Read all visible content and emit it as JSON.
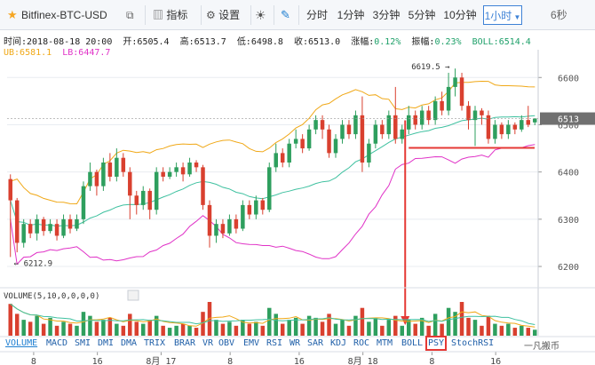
{
  "toolbar": {
    "symbol": "Bitfinex-BTC-USD",
    "indicators_label": "指标",
    "settings_label": "设置",
    "intervals": [
      "分时",
      "1分钟",
      "3分钟",
      "5分钟",
      "10分钟",
      "1小时"
    ],
    "active_interval": "1小时",
    "countdown": "6秒"
  },
  "info": {
    "time": "时间:2018-08-18 20:00",
    "open": "开:6505.4",
    "high": "高:6513.7",
    "low": "低:6498.8",
    "close": "收:6513.0",
    "change_label": "涨幅:",
    "change_value": "0.12%",
    "amplitude_label": "振幅:",
    "amplitude_value": "0.23%",
    "boll": "BOLL:6514.4",
    "ub": "UB:6581.1",
    "lb": "LB:6447.7"
  },
  "colors": {
    "up": "#2e9f5e",
    "down": "#d9402f",
    "boll_mid": "#3fc1a0",
    "boll_ub": "#f0a817",
    "boll_lb": "#e032c7",
    "support_line": "#e53935",
    "arrow": "#e53935",
    "price_tag_bg": "#707070"
  },
  "chart_data": {
    "type": "candlestick",
    "y_ticks": [
      6600,
      6500,
      6400,
      6300,
      6200
    ],
    "ylim": [
      6170,
      6640
    ],
    "current_price_label": "6513",
    "max_label": "6619.5",
    "min_label": "6212.9",
    "x_ticks": [
      "8",
      "16",
      "8月 17",
      "8",
      "16",
      "8月 18",
      "8",
      "16"
    ],
    "volume_panel_label": "VOLUME(5,10,0,0,0,0)",
    "support_level": 6451,
    "candles": [
      [
        6385,
        6340,
        6395,
        6220,
        80
      ],
      [
        6340,
        6250,
        6345,
        6230,
        55
      ],
      [
        6250,
        6290,
        6300,
        6240,
        40
      ],
      [
        6290,
        6270,
        6300,
        6260,
        35
      ],
      [
        6270,
        6300,
        6310,
        6255,
        50
      ],
      [
        6300,
        6275,
        6305,
        6265,
        30
      ],
      [
        6275,
        6290,
        6300,
        6270,
        45
      ],
      [
        6290,
        6265,
        6300,
        6255,
        25
      ],
      [
        6265,
        6300,
        6310,
        6260,
        35
      ],
      [
        6300,
        6280,
        6310,
        6270,
        30
      ],
      [
        6280,
        6300,
        6310,
        6275,
        25
      ],
      [
        6300,
        6370,
        6380,
        6290,
        60
      ],
      [
        6370,
        6400,
        6420,
        6360,
        50
      ],
      [
        6400,
        6370,
        6405,
        6350,
        35
      ],
      [
        6370,
        6420,
        6430,
        6360,
        40
      ],
      [
        6420,
        6390,
        6440,
        6380,
        45
      ],
      [
        6390,
        6430,
        6450,
        6380,
        30
      ],
      [
        6430,
        6400,
        6440,
        6390,
        25
      ],
      [
        6400,
        6350,
        6410,
        6300,
        55
      ],
      [
        6350,
        6330,
        6360,
        6310,
        35
      ],
      [
        6330,
        6360,
        6370,
        6320,
        30
      ],
      [
        6360,
        6320,
        6365,
        6300,
        40
      ],
      [
        6320,
        6400,
        6410,
        6310,
        50
      ],
      [
        6400,
        6390,
        6410,
        6380,
        25
      ],
      [
        6390,
        6400,
        6410,
        6385,
        20
      ],
      [
        6400,
        6410,
        6420,
        6390,
        25
      ],
      [
        6410,
        6395,
        6420,
        6380,
        30
      ],
      [
        6395,
        6420,
        6430,
        6390,
        25
      ],
      [
        6420,
        6410,
        6425,
        6400,
        20
      ],
      [
        6410,
        6330,
        6415,
        6320,
        60
      ],
      [
        6330,
        6265,
        6340,
        6240,
        85
      ],
      [
        6265,
        6290,
        6300,
        6250,
        40
      ],
      [
        6290,
        6270,
        6300,
        6260,
        30
      ],
      [
        6270,
        6300,
        6310,
        6265,
        35
      ],
      [
        6300,
        6280,
        6310,
        6270,
        25
      ],
      [
        6280,
        6330,
        6340,
        6275,
        40
      ],
      [
        6330,
        6310,
        6340,
        6300,
        30
      ],
      [
        6310,
        6340,
        6350,
        6300,
        35
      ],
      [
        6340,
        6320,
        6345,
        6310,
        25
      ],
      [
        6320,
        6410,
        6420,
        6315,
        70
      ],
      [
        6410,
        6440,
        6460,
        6400,
        55
      ],
      [
        6440,
        6420,
        6450,
        6410,
        30
      ],
      [
        6420,
        6460,
        6470,
        6410,
        40
      ],
      [
        6460,
        6470,
        6490,
        6450,
        45
      ],
      [
        6470,
        6450,
        6480,
        6440,
        30
      ],
      [
        6450,
        6490,
        6500,
        6445,
        50
      ],
      [
        6490,
        6510,
        6520,
        6480,
        45
      ],
      [
        6510,
        6490,
        6520,
        6470,
        35
      ],
      [
        6490,
        6440,
        6500,
        6430,
        55
      ],
      [
        6440,
        6470,
        6480,
        6430,
        30
      ],
      [
        6470,
        6500,
        6510,
        6460,
        40
      ],
      [
        6500,
        6480,
        6510,
        6470,
        25
      ],
      [
        6480,
        6520,
        6530,
        6470,
        50
      ],
      [
        6520,
        6420,
        6560,
        6400,
        70
      ],
      [
        6420,
        6460,
        6470,
        6410,
        35
      ],
      [
        6460,
        6500,
        6510,
        6450,
        45
      ],
      [
        6500,
        6480,
        6510,
        6470,
        25
      ],
      [
        6480,
        6520,
        6530,
        6470,
        40
      ],
      [
        6520,
        6470,
        6580,
        6460,
        50
      ],
      [
        6470,
        6490,
        6500,
        6460,
        25
      ],
      [
        6490,
        6520,
        6540,
        6480,
        40
      ],
      [
        6520,
        6500,
        6530,
        6490,
        30
      ],
      [
        6500,
        6530,
        6540,
        6490,
        45
      ],
      [
        6530,
        6510,
        6540,
        6500,
        25
      ],
      [
        6510,
        6550,
        6560,
        6500,
        55
      ],
      [
        6550,
        6530,
        6570,
        6520,
        30
      ],
      [
        6530,
        6580,
        6610,
        6520,
        70
      ],
      [
        6580,
        6600,
        6619,
        6560,
        60
      ],
      [
        6600,
        6540,
        6610,
        6530,
        85
      ],
      [
        6540,
        6510,
        6550,
        6490,
        45
      ],
      [
        6510,
        6530,
        6540,
        6455,
        40
      ],
      [
        6530,
        6520,
        6535,
        6500,
        25
      ],
      [
        6520,
        6470,
        6530,
        6460,
        50
      ],
      [
        6470,
        6500,
        6510,
        6460,
        30
      ],
      [
        6500,
        6480,
        6505,
        6470,
        25
      ],
      [
        6480,
        6500,
        6510,
        6470,
        30
      ],
      [
        6500,
        6490,
        6505,
        6480,
        20
      ],
      [
        6490,
        6510,
        6520,
        6485,
        25
      ],
      [
        6510,
        6500,
        6540,
        6495,
        20
      ],
      [
        6505,
        6513,
        6514,
        6499,
        15
      ]
    ]
  },
  "tabs": [
    "VOLUME",
    "MACD",
    "SMI",
    "DMI",
    "DMA",
    "TRIX",
    "BRAR",
    "VR",
    "OBV",
    "EMV",
    "RSI",
    "WR",
    "SAR",
    "KDJ",
    "ROC",
    "MTM",
    "BOLL",
    "PSY",
    "StochRSI"
  ],
  "active_tab": "VOLUME",
  "highlighted_tab": "PSY",
  "watermark": "一凡搬币"
}
